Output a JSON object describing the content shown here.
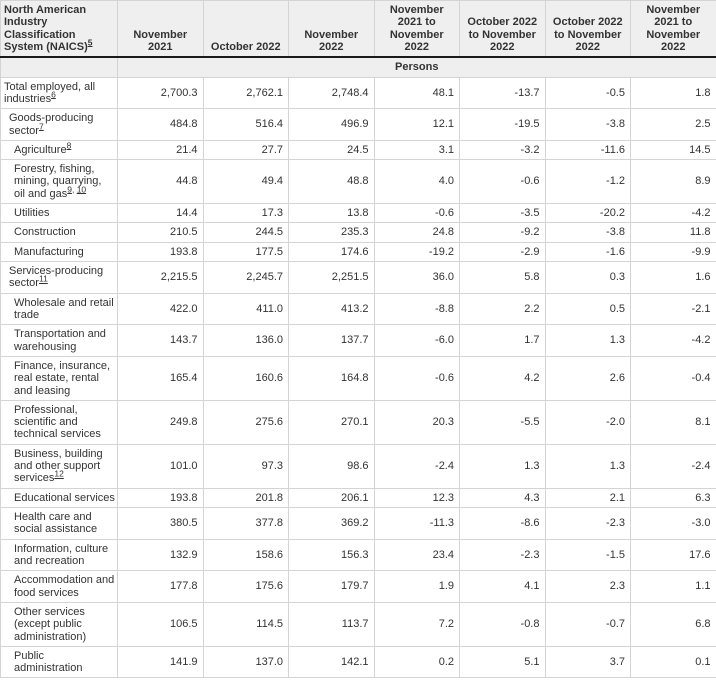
{
  "table": {
    "naics_header": "North American Industry Classification System (NAICS)",
    "naics_footnote": "5",
    "columns": [
      "November 2021",
      "October 2022",
      "November 2022",
      "November 2021 to November 2022",
      "October 2022 to November 2022",
      "October 2022 to November 2022",
      "November 2021 to November 2022"
    ],
    "unit_label": "Persons",
    "colors": {
      "header_bg": "#efefef",
      "cell_border": "#d4d4d4",
      "header_rule": "#1a1a1a",
      "text": "#333333"
    },
    "rows": [
      {
        "label": "Total employed, all industries",
        "footnote": "6",
        "indent": 0,
        "values": [
          "2,700.3",
          "2,762.1",
          "2,748.4",
          "48.1",
          "-13.7",
          "-0.5",
          "1.8"
        ]
      },
      {
        "label": "Goods-producing sector",
        "footnote": "7",
        "indent": 1,
        "values": [
          "484.8",
          "516.4",
          "496.9",
          "12.1",
          "-19.5",
          "-3.8",
          "2.5"
        ]
      },
      {
        "label": "Agriculture",
        "footnote": "8",
        "indent": 2,
        "values": [
          "21.4",
          "27.7",
          "24.5",
          "3.1",
          "-3.2",
          "-11.6",
          "14.5"
        ]
      },
      {
        "label": "Forestry, fishing, mining, quarrying, oil and gas",
        "footnote": "9, 10",
        "indent": 2,
        "values": [
          "44.8",
          "49.4",
          "48.8",
          "4.0",
          "-0.6",
          "-1.2",
          "8.9"
        ]
      },
      {
        "label": "Utilities",
        "footnote": "",
        "indent": 2,
        "values": [
          "14.4",
          "17.3",
          "13.8",
          "-0.6",
          "-3.5",
          "-20.2",
          "-4.2"
        ]
      },
      {
        "label": "Construction",
        "footnote": "",
        "indent": 2,
        "values": [
          "210.5",
          "244.5",
          "235.3",
          "24.8",
          "-9.2",
          "-3.8",
          "11.8"
        ]
      },
      {
        "label": "Manufacturing",
        "footnote": "",
        "indent": 2,
        "values": [
          "193.8",
          "177.5",
          "174.6",
          "-19.2",
          "-2.9",
          "-1.6",
          "-9.9"
        ]
      },
      {
        "label": "Services-producing sector",
        "footnote": "11",
        "indent": 1,
        "values": [
          "2,215.5",
          "2,245.7",
          "2,251.5",
          "36.0",
          "5.8",
          "0.3",
          "1.6"
        ]
      },
      {
        "label": "Wholesale and retail trade",
        "footnote": "",
        "indent": 2,
        "values": [
          "422.0",
          "411.0",
          "413.2",
          "-8.8",
          "2.2",
          "0.5",
          "-2.1"
        ]
      },
      {
        "label": "Transportation and warehousing",
        "footnote": "",
        "indent": 2,
        "values": [
          "143.7",
          "136.0",
          "137.7",
          "-6.0",
          "1.7",
          "1.3",
          "-4.2"
        ]
      },
      {
        "label": "Finance, insurance, real estate, rental and leasing",
        "footnote": "",
        "indent": 2,
        "values": [
          "165.4",
          "160.6",
          "164.8",
          "-0.6",
          "4.2",
          "2.6",
          "-0.4"
        ]
      },
      {
        "label": "Professional, scientific and technical services",
        "footnote": "",
        "indent": 2,
        "values": [
          "249.8",
          "275.6",
          "270.1",
          "20.3",
          "-5.5",
          "-2.0",
          "8.1"
        ]
      },
      {
        "label": "Business, building and other support services",
        "footnote": "12",
        "indent": 2,
        "values": [
          "101.0",
          "97.3",
          "98.6",
          "-2.4",
          "1.3",
          "1.3",
          "-2.4"
        ]
      },
      {
        "label": "Educational services",
        "footnote": "",
        "indent": 2,
        "values": [
          "193.8",
          "201.8",
          "206.1",
          "12.3",
          "4.3",
          "2.1",
          "6.3"
        ]
      },
      {
        "label": "Health care and social assistance",
        "footnote": "",
        "indent": 2,
        "values": [
          "380.5",
          "377.8",
          "369.2",
          "-11.3",
          "-8.6",
          "-2.3",
          "-3.0"
        ]
      },
      {
        "label": "Information, culture and recreation",
        "footnote": "",
        "indent": 2,
        "values": [
          "132.9",
          "158.6",
          "156.3",
          "23.4",
          "-2.3",
          "-1.5",
          "17.6"
        ]
      },
      {
        "label": "Accommodation and food services",
        "footnote": "",
        "indent": 2,
        "values": [
          "177.8",
          "175.6",
          "179.7",
          "1.9",
          "4.1",
          "2.3",
          "1.1"
        ]
      },
      {
        "label": "Other services (except public administration)",
        "footnote": "",
        "indent": 2,
        "values": [
          "106.5",
          "114.5",
          "113.7",
          "7.2",
          "-0.8",
          "-0.7",
          "6.8"
        ]
      },
      {
        "label": "Public administration",
        "footnote": "",
        "indent": 2,
        "values": [
          "141.9",
          "137.0",
          "142.1",
          "0.2",
          "5.1",
          "3.7",
          "0.1"
        ]
      }
    ]
  },
  "chart_data": {
    "type": "table",
    "row_header": "North American Industry Classification System (NAICS)",
    "unit": "Persons",
    "columns": [
      "November 2021",
      "October 2022",
      "November 2022",
      "November 2021 to November 2022",
      "October 2022 to November 2022",
      "October 2022 to November 2022",
      "November 2021 to November 2022"
    ],
    "rows": [
      [
        "Total employed, all industries",
        2700.3,
        2762.1,
        2748.4,
        48.1,
        -13.7,
        -0.5,
        1.8
      ],
      [
        "Goods-producing sector",
        484.8,
        516.4,
        496.9,
        12.1,
        -19.5,
        -3.8,
        2.5
      ],
      [
        "Agriculture",
        21.4,
        27.7,
        24.5,
        3.1,
        -3.2,
        -11.6,
        14.5
      ],
      [
        "Forestry, fishing, mining, quarrying, oil and gas",
        44.8,
        49.4,
        48.8,
        4.0,
        -0.6,
        -1.2,
        8.9
      ],
      [
        "Utilities",
        14.4,
        17.3,
        13.8,
        -0.6,
        -3.5,
        -20.2,
        -4.2
      ],
      [
        "Construction",
        210.5,
        244.5,
        235.3,
        24.8,
        -9.2,
        -3.8,
        11.8
      ],
      [
        "Manufacturing",
        193.8,
        177.5,
        174.6,
        -19.2,
        -2.9,
        -1.6,
        -9.9
      ],
      [
        "Services-producing sector",
        2215.5,
        2245.7,
        2251.5,
        36.0,
        5.8,
        0.3,
        1.6
      ],
      [
        "Wholesale and retail trade",
        422.0,
        411.0,
        413.2,
        -8.8,
        2.2,
        0.5,
        -2.1
      ],
      [
        "Transportation and warehousing",
        143.7,
        136.0,
        137.7,
        -6.0,
        1.7,
        1.3,
        -4.2
      ],
      [
        "Finance, insurance, real estate, rental and leasing",
        165.4,
        160.6,
        164.8,
        -0.6,
        4.2,
        2.6,
        -0.4
      ],
      [
        "Professional, scientific and technical services",
        249.8,
        275.6,
        270.1,
        20.3,
        -5.5,
        -2.0,
        8.1
      ],
      [
        "Business, building and other support services",
        101.0,
        97.3,
        98.6,
        -2.4,
        1.3,
        1.3,
        -2.4
      ],
      [
        "Educational services",
        193.8,
        201.8,
        206.1,
        12.3,
        4.3,
        2.1,
        6.3
      ],
      [
        "Health care and social assistance",
        380.5,
        377.8,
        369.2,
        -11.3,
        -8.6,
        -2.3,
        -3.0
      ],
      [
        "Information, culture and recreation",
        132.9,
        158.6,
        156.3,
        23.4,
        -2.3,
        -1.5,
        17.6
      ],
      [
        "Accommodation and food services",
        177.8,
        175.6,
        179.7,
        1.9,
        4.1,
        2.3,
        1.1
      ],
      [
        "Other services (except public administration)",
        106.5,
        114.5,
        113.7,
        7.2,
        -0.8,
        -0.7,
        6.8
      ],
      [
        "Public administration",
        141.9,
        137.0,
        142.1,
        0.2,
        5.1,
        3.7,
        0.1
      ]
    ]
  }
}
